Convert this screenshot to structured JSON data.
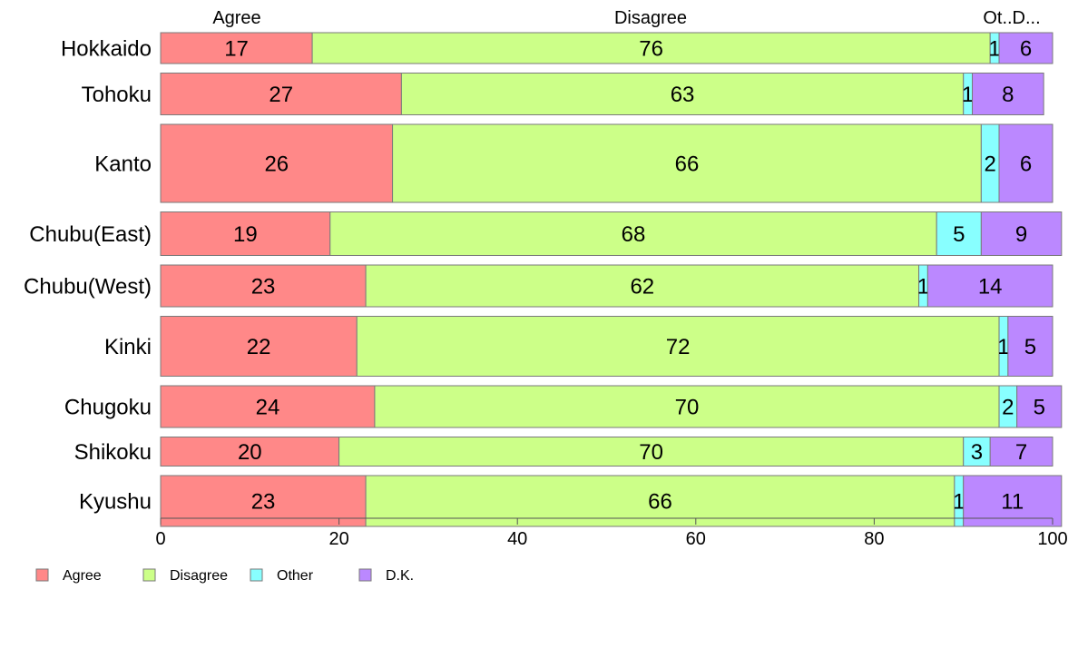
{
  "chart_data": {
    "type": "bar",
    "orientation": "horizontal",
    "stacked": true,
    "categories": [
      "Hokkaido",
      "Tohoku",
      "Kanto",
      "Chubu(East)",
      "Chubu(West)",
      "Kinki",
      "Chugoku",
      "Shikoku",
      "Kyushu"
    ],
    "series": [
      {
        "name": "Agree",
        "values": [
          17,
          27,
          26,
          19,
          23,
          22,
          24,
          20,
          23
        ]
      },
      {
        "name": "Disagree",
        "values": [
          76,
          63,
          66,
          68,
          62,
          72,
          70,
          70,
          66
        ]
      },
      {
        "name": "Other",
        "values": [
          1,
          1,
          2,
          5,
          1,
          1,
          2,
          3,
          1
        ]
      },
      {
        "name": "D.K.",
        "values": [
          6,
          8,
          6,
          9,
          14,
          5,
          5,
          7,
          11
        ]
      }
    ],
    "bar_thickness": [
      34,
      46,
      86,
      48,
      46,
      66,
      46,
      32,
      56
    ],
    "column_labels": [
      "Agree",
      "Disagree",
      "Ot..D..."
    ],
    "colors": [
      "#ff8888",
      "#ccff88",
      "#88ffff",
      "#bb88ff"
    ],
    "xlim": [
      0,
      100
    ],
    "xticks": [
      0,
      20,
      40,
      60,
      80,
      100
    ],
    "legend_position": "bottom-left",
    "grid": false
  }
}
